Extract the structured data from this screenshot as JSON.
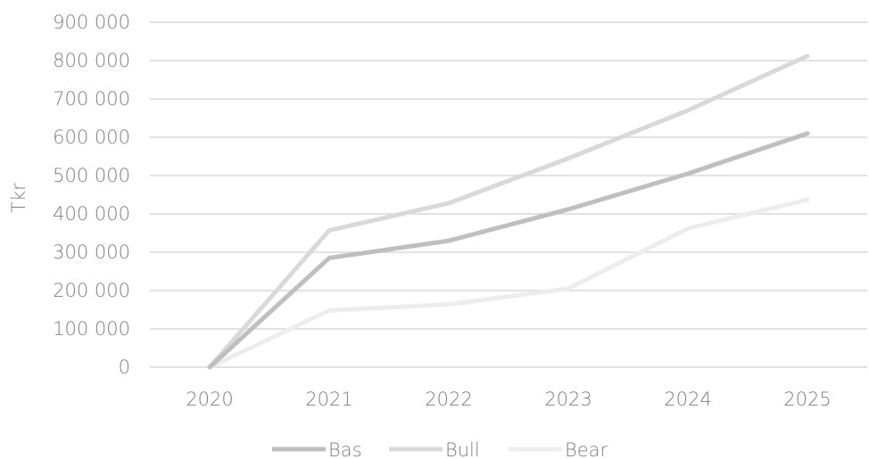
{
  "chart_data": {
    "type": "line",
    "title": "",
    "xlabel": "",
    "ylabel": "Tkr",
    "categories": [
      "2020",
      "2021",
      "2022",
      "2023",
      "2024",
      "2025"
    ],
    "y_ticks": [
      "0",
      "100 000",
      "200 000",
      "300 000",
      "400 000",
      "500 000",
      "600 000",
      "700 000",
      "800 000",
      "900 000"
    ],
    "ylim": [
      0,
      900000
    ],
    "grid": true,
    "legend_position": "bottom",
    "series": [
      {
        "name": "Bas",
        "color": "#bfbfbf",
        "values": [
          0,
          285000,
          330000,
          412000,
          505000,
          610000
        ]
      },
      {
        "name": "Bull",
        "color": "#d9d9d9",
        "values": [
          0,
          357000,
          428000,
          545000,
          670000,
          812000
        ]
      },
      {
        "name": "Bear",
        "color": "#ededed",
        "values": [
          0,
          148000,
          164000,
          205000,
          362000,
          437000
        ]
      }
    ]
  }
}
